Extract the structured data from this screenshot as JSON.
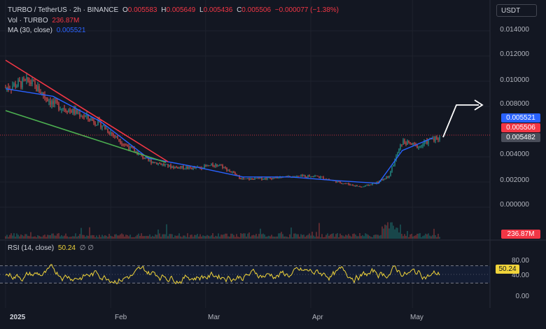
{
  "header": {
    "symbol": "TURBO / TetherUS · 2h · BINANCE",
    "o_label": "O",
    "o_value": "0.005583",
    "h_label": "H",
    "h_value": "0.005649",
    "l_label": "L",
    "l_value": "0.005436",
    "c_label": "C",
    "c_value": "0.005506",
    "change": "−0.000077 (−1.38%)"
  },
  "volume_legend": {
    "label": "Vol · TURBO",
    "value": "236.87M"
  },
  "ma_legend": {
    "label": "MA (30, close)",
    "value": "0.005521"
  },
  "rsi_legend": {
    "label": "RSI (14, close)",
    "value": "50.24",
    "extra": "∅ ∅"
  },
  "currency_button": "USDT",
  "price_axis": [
    "0.014000",
    "0.012000",
    "0.010000",
    "0.008000",
    "0.004000",
    "0.002000",
    "0.000000"
  ],
  "price_tags": {
    "ma": "0.005521",
    "close": "0.005506",
    "other": "0.005482"
  },
  "volume_tag": "236.87M",
  "rsi_axis": [
    "80.00",
    "40.00",
    "0.00"
  ],
  "rsi_tag": "50.24",
  "x_axis": [
    "2025",
    "Feb",
    "Mar",
    "Apr",
    "May"
  ],
  "colors": {
    "up": "#26a69a",
    "down": "#ef5350",
    "ma": "#2962ff",
    "rsi": "#f0d43a",
    "trend_red": "#f23645",
    "trend_green": "#4caf50",
    "background": "#131722"
  },
  "chart_data": {
    "type": "line",
    "series": [
      {
        "name": "TURBO / TetherUS",
        "x": [
          "2025-01-01",
          "2025-01-08",
          "2025-01-15",
          "2025-01-22",
          "2025-01-29",
          "2025-02-05",
          "2025-02-12",
          "2025-02-19",
          "2025-02-26",
          "2025-03-05",
          "2025-03-12",
          "2025-03-19",
          "2025-03-26",
          "2025-04-02",
          "2025-04-09",
          "2025-04-16",
          "2025-04-21",
          "2025-04-24",
          "2025-04-28",
          "2025-05-03",
          "2025-05-07"
        ],
        "values": [
          0.0095,
          0.01,
          0.0082,
          0.0075,
          0.0066,
          0.005,
          0.0037,
          0.0032,
          0.0031,
          0.0034,
          0.0022,
          0.0023,
          0.0024,
          0.0025,
          0.002,
          0.0016,
          0.002,
          0.0025,
          0.0052,
          0.0048,
          0.0055
        ]
      },
      {
        "name": "MA (30, close)",
        "x": [
          "2025-01-01",
          "2025-01-15",
          "2025-01-29",
          "2025-02-12",
          "2025-02-26",
          "2025-03-12",
          "2025-03-26",
          "2025-04-09",
          "2025-04-21",
          "2025-04-28",
          "2025-05-07"
        ],
        "values": [
          0.0094,
          0.0088,
          0.0068,
          0.0039,
          0.0032,
          0.0024,
          0.0024,
          0.0021,
          0.0019,
          0.0045,
          0.0055
        ]
      }
    ],
    "ylim": [
      0.0,
      0.0145
    ],
    "ticks_y": [
      "0.014000",
      "0.012000",
      "0.010000",
      "0.008000",
      "0.004000",
      "0.002000",
      "0.000000"
    ],
    "ticks_x": [
      "2025",
      "Feb",
      "Mar",
      "Apr",
      "May"
    ],
    "rsi": {
      "value": 50.24,
      "upper_band": 70,
      "lower_band": 30
    }
  }
}
